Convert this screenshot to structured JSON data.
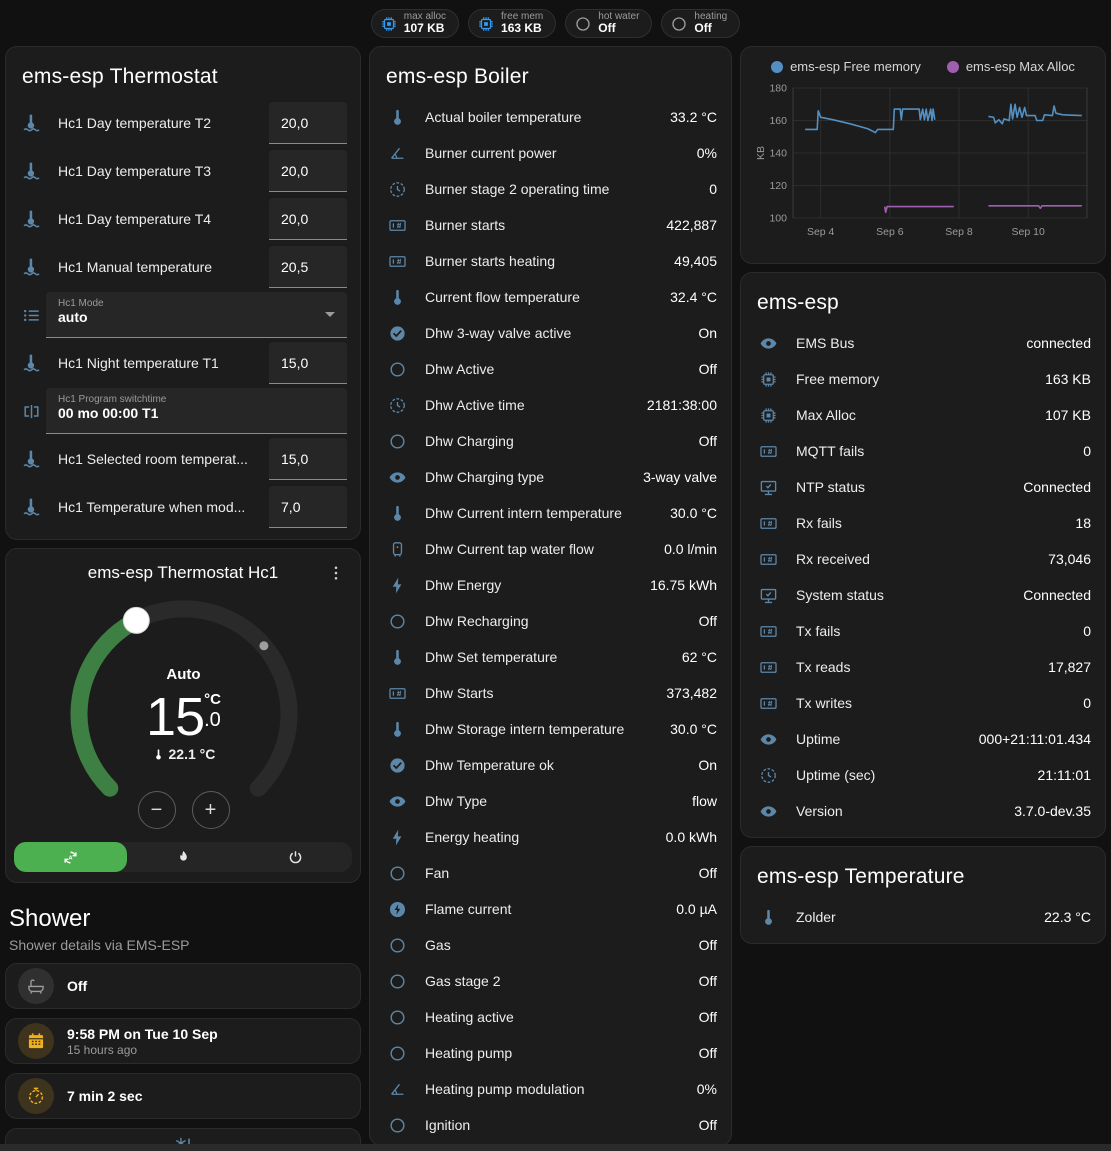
{
  "colors": {
    "card_bg": "#1c1c1c",
    "page_bg": "#111111",
    "row_icon_blue": "#5d87a9",
    "badge_icon_blue": "#2f9bf4",
    "amber": "#f2b01e",
    "active_green": "#4caf50",
    "arc_green": "#3e8043",
    "free_memory_line": "#5290c3",
    "max_alloc_line": "#a05fae"
  },
  "header": {
    "badges": [
      {
        "icon": "chip",
        "tint": "blue",
        "label": "max alloc",
        "value": "107 KB"
      },
      {
        "icon": "chip",
        "tint": "blue",
        "label": "free mem",
        "value": "163 KB"
      },
      {
        "icon": "circle",
        "tint": "gray",
        "label": "hot water",
        "value": "Off"
      },
      {
        "icon": "circle",
        "tint": "gray",
        "label": "heating",
        "value": "Off"
      }
    ]
  },
  "thermostat_card": {
    "title": "ems-esp Thermostat",
    "rows": [
      {
        "icon": "thermometer-water",
        "label": "Hc1 Day temperature T2",
        "value": "20,0",
        "control": "number"
      },
      {
        "icon": "thermometer-water",
        "label": "Hc1 Day temperature T3",
        "value": "20,0",
        "control": "number"
      },
      {
        "icon": "thermometer-water",
        "label": "Hc1 Day temperature T4",
        "value": "20,0",
        "control": "number"
      },
      {
        "icon": "thermometer-water",
        "label": "Hc1 Manual temperature",
        "value": "20,5",
        "control": "number"
      },
      {
        "icon": "format-list",
        "label": "Hc1 Mode",
        "value": "auto",
        "control": "select"
      },
      {
        "icon": "thermometer-water",
        "label": "Hc1 Night temperature T1",
        "value": "15,0",
        "control": "number"
      },
      {
        "icon": "pipe-valve",
        "label": "Hc1 Program switchtime",
        "value": "00 mo 00:00 T1",
        "control": "text-wide"
      },
      {
        "icon": "thermometer-water",
        "label": "Hc1 Selected room temperat...",
        "value": "15,0",
        "control": "number"
      },
      {
        "icon": "thermometer-water",
        "label": "Hc1 Temperature when mod...",
        "value": "7,0",
        "control": "number"
      }
    ]
  },
  "hc1_card": {
    "title": "ems-esp Thermostat Hc1",
    "mode_label": "Auto",
    "target_whole": "15",
    "target_unit": "°C",
    "target_decimal": ".0",
    "current_temperature": "22.1 °C",
    "decrease_label": "−",
    "increase_label": "+",
    "modes": [
      {
        "icon": "auto",
        "name": "auto",
        "active": true
      },
      {
        "icon": "flame",
        "name": "heat",
        "active": false
      },
      {
        "icon": "power",
        "name": "off",
        "active": false
      }
    ]
  },
  "shower": {
    "title": "Shower",
    "subtitle": "Shower details via EMS-ESP",
    "items": [
      {
        "icon": "bathtub",
        "tint": "gray",
        "value": "Off",
        "secondary": ""
      },
      {
        "icon": "calendar",
        "tint": "amber",
        "value": "9:58 PM on Tue 10 Sep",
        "secondary": "15 hours ago"
      },
      {
        "icon": "timer",
        "tint": "amber",
        "value": "7 min 2 sec",
        "secondary": ""
      }
    ],
    "partial_item_icon": "snowflake-alert"
  },
  "boiler_card": {
    "title": "ems-esp Boiler",
    "rows": [
      {
        "icon": "thermometer",
        "label": "Actual boiler temperature",
        "value": "33.2 °C"
      },
      {
        "icon": "angle",
        "label": "Burner current power",
        "value": "0%"
      },
      {
        "icon": "clock",
        "label": "Burner stage 2 operating time",
        "value": "0"
      },
      {
        "icon": "counter",
        "label": "Burner starts",
        "value": "422,887"
      },
      {
        "icon": "counter",
        "label": "Burner starts heating",
        "value": "49,405"
      },
      {
        "icon": "thermometer",
        "label": "Current flow temperature",
        "value": "32.4 °C"
      },
      {
        "icon": "check-circle",
        "label": "Dhw 3-way valve active",
        "value": "On"
      },
      {
        "icon": "circle",
        "label": "Dhw Active",
        "value": "Off"
      },
      {
        "icon": "clock",
        "label": "Dhw Active time",
        "value": "2181:38:00"
      },
      {
        "icon": "circle",
        "label": "Dhw Charging",
        "value": "Off"
      },
      {
        "icon": "eye",
        "label": "Dhw Charging type",
        "value": "3-way valve"
      },
      {
        "icon": "thermometer",
        "label": "Dhw Current intern temperature",
        "value": "30.0 °C"
      },
      {
        "icon": "boiler",
        "label": "Dhw Current tap water flow",
        "value": "0.0 l/min"
      },
      {
        "icon": "flash",
        "label": "Dhw Energy",
        "value": "16.75 kWh"
      },
      {
        "icon": "circle",
        "label": "Dhw Recharging",
        "value": "Off"
      },
      {
        "icon": "thermometer",
        "label": "Dhw Set temperature",
        "value": "62 °C"
      },
      {
        "icon": "counter",
        "label": "Dhw Starts",
        "value": "373,482"
      },
      {
        "icon": "thermometer",
        "label": "Dhw Storage intern temperature",
        "value": "30.0 °C"
      },
      {
        "icon": "check-circle",
        "label": "Dhw Temperature ok",
        "value": "On"
      },
      {
        "icon": "eye",
        "label": "Dhw Type",
        "value": "flow"
      },
      {
        "icon": "flash",
        "label": "Energy heating",
        "value": "0.0 kWh"
      },
      {
        "icon": "circle",
        "label": "Fan",
        "value": "Off"
      },
      {
        "icon": "flash-circle",
        "label": "Flame current",
        "value": "0.0 µA"
      },
      {
        "icon": "circle",
        "label": "Gas",
        "value": "Off"
      },
      {
        "icon": "circle",
        "label": "Gas stage 2",
        "value": "Off"
      },
      {
        "icon": "circle",
        "label": "Heating active",
        "value": "Off"
      },
      {
        "icon": "circle",
        "label": "Heating pump",
        "value": "Off"
      },
      {
        "icon": "angle",
        "label": "Heating pump modulation",
        "value": "0%"
      },
      {
        "icon": "circle",
        "label": "Ignition",
        "value": "Off"
      }
    ]
  },
  "emsesp_card": {
    "title": "ems-esp",
    "rows": [
      {
        "icon": "eye",
        "label": "EMS Bus",
        "value": "connected"
      },
      {
        "icon": "chip",
        "label": "Free memory",
        "value": "163 KB"
      },
      {
        "icon": "chip",
        "label": "Max Alloc",
        "value": "107 KB"
      },
      {
        "icon": "counter",
        "label": "MQTT fails",
        "value": "0"
      },
      {
        "icon": "monitor-check",
        "label": "NTP status",
        "value": "Connected"
      },
      {
        "icon": "counter",
        "label": "Rx fails",
        "value": "18"
      },
      {
        "icon": "counter",
        "label": "Rx received",
        "value": "73,046"
      },
      {
        "icon": "monitor-check",
        "label": "System status",
        "value": "Connected"
      },
      {
        "icon": "counter",
        "label": "Tx fails",
        "value": "0"
      },
      {
        "icon": "counter",
        "label": "Tx reads",
        "value": "17,827"
      },
      {
        "icon": "counter",
        "label": "Tx writes",
        "value": "0"
      },
      {
        "icon": "eye",
        "label": "Uptime",
        "value": "000+21:11:01.434"
      },
      {
        "icon": "clock",
        "label": "Uptime (sec)",
        "value": "21:11:01"
      },
      {
        "icon": "eye",
        "label": "Version",
        "value": "3.7.0-dev.35"
      }
    ]
  },
  "temperature_card": {
    "title": "ems-esp Temperature",
    "rows": [
      {
        "icon": "thermometer",
        "label": "Zolder",
        "value": "22.3 °C"
      }
    ]
  },
  "chart_data": {
    "type": "line",
    "title": "",
    "xlabel": "",
    "ylabel": "KB",
    "ylim": [
      100,
      180
    ],
    "xlim": [
      3.2,
      11.7
    ],
    "y_ticks": [
      100,
      120,
      140,
      160,
      180
    ],
    "x_ticks": [
      {
        "day": 4,
        "label": "Sep 4"
      },
      {
        "day": 6,
        "label": "Sep 6"
      },
      {
        "day": 8,
        "label": "Sep 8"
      },
      {
        "day": 10,
        "label": "Sep 10"
      }
    ],
    "grid": true,
    "legend_position": "top",
    "series": [
      {
        "name": "ems-esp Free memory",
        "color": "#5290c3",
        "points": [
          [
            3.55,
            154.5
          ],
          [
            3.9,
            154.5
          ],
          [
            3.93,
            166
          ],
          [
            4.0,
            162
          ],
          [
            4.35,
            160.5
          ],
          [
            4.85,
            158
          ],
          [
            5.35,
            155
          ],
          [
            5.5,
            153.5
          ],
          [
            5.58,
            152.5
          ],
          [
            5.65,
            154.5
          ],
          [
            6.1,
            154.5
          ],
          [
            6.13,
            167
          ],
          [
            6.3,
            167
          ],
          [
            6.33,
            160.5
          ],
          [
            6.37,
            167
          ],
          [
            6.85,
            167
          ],
          [
            6.88,
            160.5
          ],
          [
            6.95,
            167
          ],
          [
            7.0,
            160.5
          ],
          [
            7.05,
            167
          ],
          [
            7.1,
            160
          ],
          [
            7.18,
            167
          ],
          [
            7.22,
            160
          ],
          [
            7.25,
            167
          ],
          [
            7.3,
            160.5
          ],
          null,
          [
            8.85,
            162.5
          ],
          [
            9.0,
            162
          ],
          [
            9.05,
            158.5
          ],
          [
            9.15,
            160.5
          ],
          [
            9.25,
            158
          ],
          [
            9.3,
            161
          ],
          [
            9.45,
            160
          ],
          [
            9.5,
            170
          ],
          [
            9.55,
            161
          ],
          [
            9.62,
            170
          ],
          [
            9.68,
            162
          ],
          [
            9.75,
            168
          ],
          [
            9.82,
            162
          ],
          [
            9.9,
            168
          ],
          [
            9.95,
            163
          ],
          [
            10.2,
            163
          ],
          [
            10.25,
            160
          ],
          [
            10.42,
            160
          ],
          [
            10.47,
            163.5
          ],
          [
            10.7,
            163
          ],
          [
            10.75,
            169
          ],
          [
            10.8,
            164.5
          ],
          [
            11.0,
            163.5
          ],
          [
            11.55,
            163
          ]
        ]
      },
      {
        "name": "ems-esp Max Alloc",
        "color": "#a05fae",
        "points": [
          [
            5.85,
            107
          ],
          [
            5.88,
            103.5
          ],
          [
            5.92,
            107
          ],
          [
            7.85,
            107
          ],
          null,
          [
            8.85,
            107.5
          ],
          [
            10.3,
            107.5
          ],
          [
            10.35,
            106
          ],
          [
            10.4,
            107.5
          ],
          [
            11.55,
            107.5
          ]
        ]
      }
    ]
  }
}
